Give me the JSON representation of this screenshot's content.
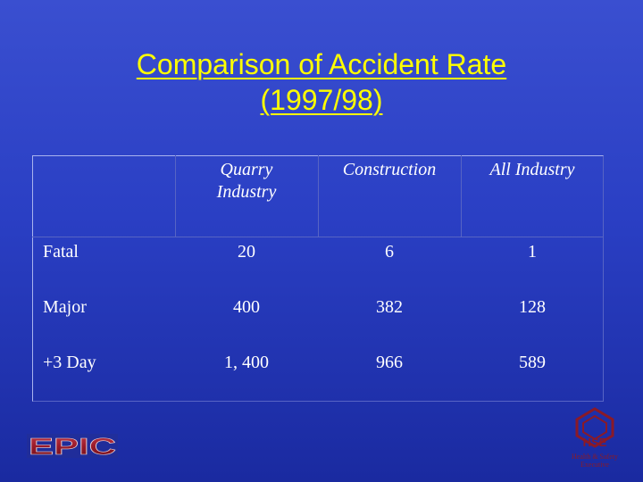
{
  "slide": {
    "title_line1": "Comparison of Accident Rate",
    "title_line2": "(1997/98)"
  },
  "table": {
    "columns": [
      "",
      "Quarry Industry",
      "Construction",
      "All Industry"
    ],
    "col_quarry_line1": "Quarry",
    "col_quarry_line2": "Industry",
    "col_construction": "Construction",
    "col_all": "All Industry",
    "rows": [
      {
        "label": "Fatal",
        "quarry": "20",
        "construction": "6",
        "all": "1"
      },
      {
        "label": "Major",
        "quarry": "400",
        "construction": "382",
        "all": "128"
      },
      {
        "label": "+3 Day",
        "quarry": "1, 400",
        "construction": "966",
        "all": "589"
      }
    ]
  },
  "logos": {
    "epic": {
      "text": "EPIC",
      "color": "#9a1a2a"
    },
    "hse": {
      "text": "HSE",
      "subtitle": "Health & Safety Executive",
      "color": "#8a1a28"
    }
  }
}
